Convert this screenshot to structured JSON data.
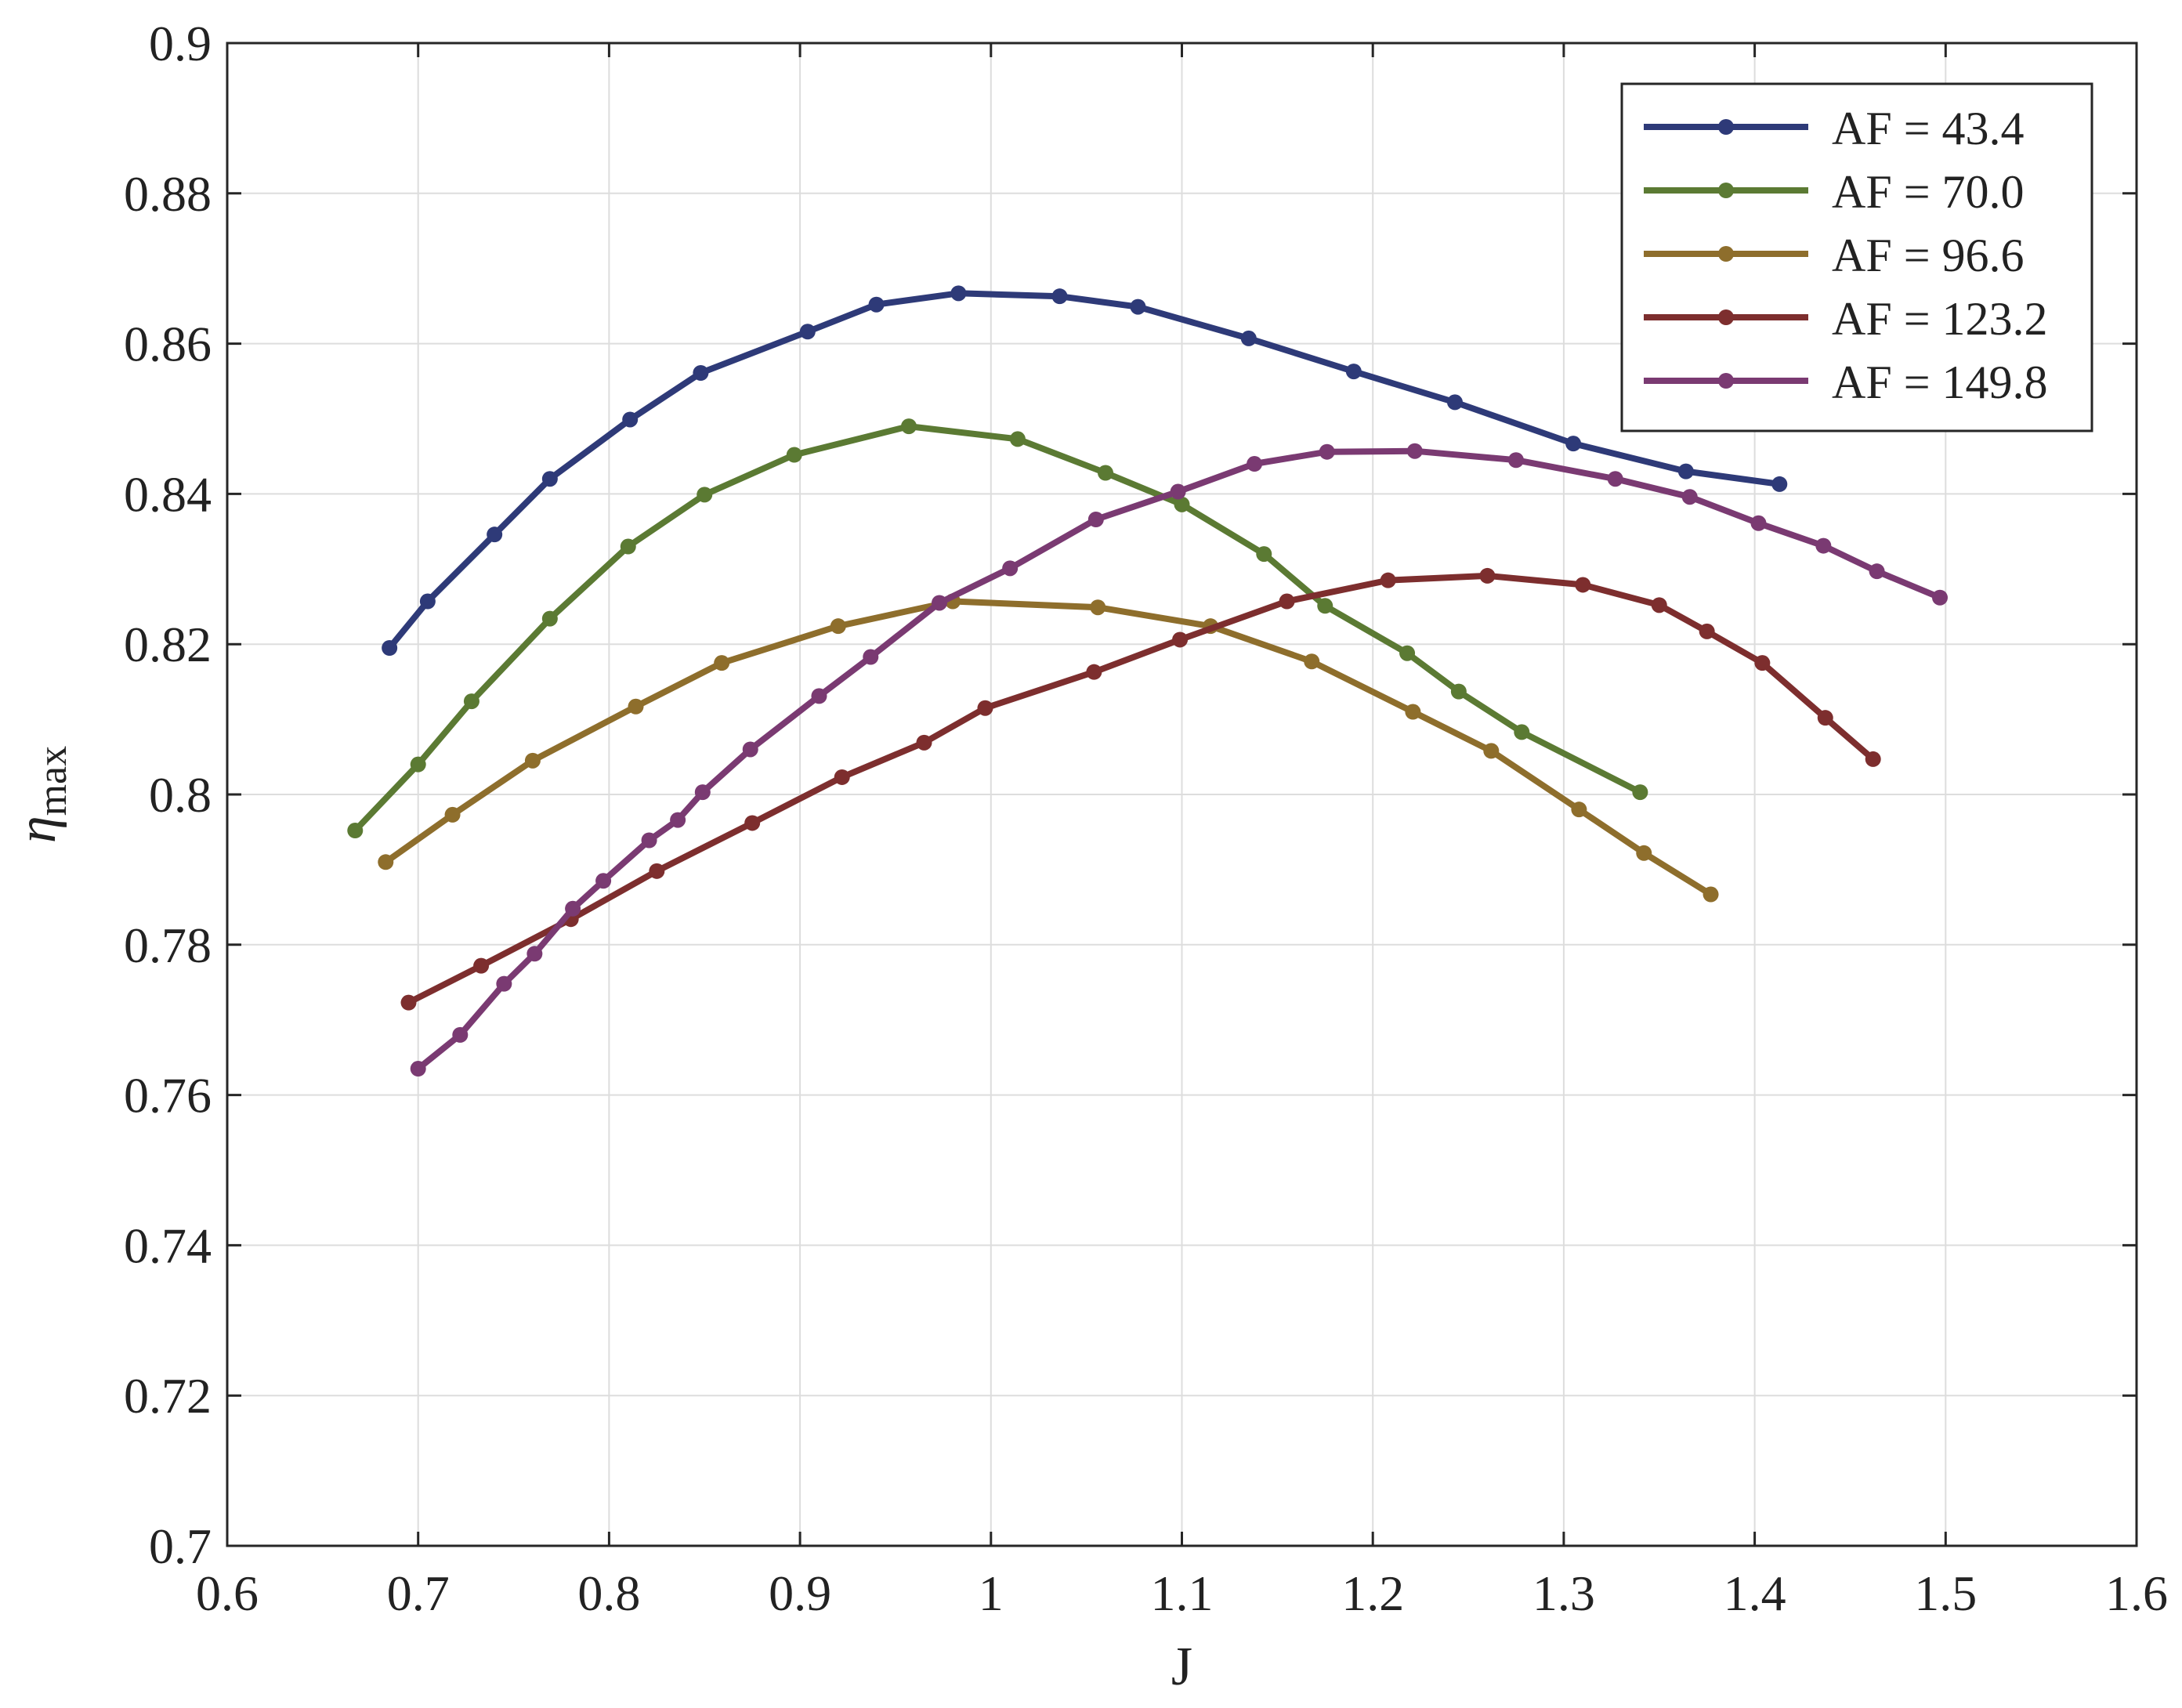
{
  "chart_data": {
    "type": "line",
    "xlabel": "J",
    "ylabel": {
      "main": "η",
      "sub": "max"
    },
    "xlim": [
      0.6,
      1.6
    ],
    "ylim": [
      0.7,
      0.9
    ],
    "xticks": [
      0.6,
      0.7,
      0.8,
      0.9,
      1,
      1.1,
      1.2,
      1.3,
      1.4,
      1.5,
      1.6
    ],
    "xtick_labels": [
      "0.6",
      "0.7",
      "0.8",
      "0.9",
      "1",
      "1.1",
      "1.2",
      "1.3",
      "1.4",
      "1.5",
      "1.6"
    ],
    "yticks": [
      0.7,
      0.72,
      0.74,
      0.76,
      0.78,
      0.8,
      0.82,
      0.84,
      0.86,
      0.88,
      0.9
    ],
    "ytick_labels": [
      "0.7",
      "0.72",
      "0.74",
      "0.76",
      "0.78",
      "0.8",
      "0.82",
      "0.84",
      "0.86",
      "0.88",
      "0.9"
    ],
    "grid": true,
    "legend_position": "top-right",
    "series": [
      {
        "name": "AF = 43.4",
        "color": "#2e3a78",
        "x": [
          0.685,
          0.705,
          0.74,
          0.769,
          0.811,
          0.848,
          0.904,
          0.94,
          0.983,
          1.036,
          1.077,
          1.135,
          1.19,
          1.243,
          1.305,
          1.364,
          1.413
        ],
        "y": [
          0.8195,
          0.8257,
          0.8346,
          0.842,
          0.8499,
          0.8561,
          0.8616,
          0.8652,
          0.8667,
          0.8663,
          0.8649,
          0.8607,
          0.8563,
          0.8522,
          0.8467,
          0.843,
          0.8413
        ]
      },
      {
        "name": "AF = 70.0",
        "color": "#5b7a33",
        "x": [
          0.667,
          0.7,
          0.728,
          0.769,
          0.81,
          0.85,
          0.897,
          0.957,
          1.014,
          1.06,
          1.1,
          1.143,
          1.175,
          1.218,
          1.245,
          1.278,
          1.34
        ],
        "y": [
          0.7952,
          0.804,
          0.8124,
          0.8234,
          0.833,
          0.8399,
          0.8452,
          0.849,
          0.8473,
          0.8428,
          0.8386,
          0.832,
          0.8251,
          0.8188,
          0.8137,
          0.8083,
          0.8003
        ]
      },
      {
        "name": "AF = 96.6",
        "color": "#8e6e2c",
        "x": [
          0.683,
          0.718,
          0.76,
          0.814,
          0.859,
          0.92,
          0.98,
          1.056,
          1.115,
          1.168,
          1.221,
          1.262,
          1.308,
          1.342,
          1.377
        ],
        "y": [
          0.791,
          0.7973,
          0.8045,
          0.8117,
          0.8175,
          0.8224,
          0.8257,
          0.8249,
          0.8224,
          0.8177,
          0.811,
          0.8058,
          0.798,
          0.7922,
          0.7867
        ]
      },
      {
        "name": "AF = 123.2",
        "color": "#7d2e2e",
        "x": [
          0.695,
          0.733,
          0.78,
          0.825,
          0.875,
          0.922,
          0.965,
          0.997,
          1.054,
          1.099,
          1.155,
          1.208,
          1.26,
          1.31,
          1.35,
          1.375,
          1.404,
          1.437,
          1.462
        ],
        "y": [
          0.7723,
          0.7772,
          0.7834,
          0.7898,
          0.7962,
          0.8023,
          0.8069,
          0.8115,
          0.8163,
          0.8206,
          0.8257,
          0.8285,
          0.8291,
          0.8279,
          0.8252,
          0.8217,
          0.8175,
          0.8102,
          0.8047
        ]
      },
      {
        "name": "AF = 149.8",
        "color": "#7a3a72",
        "x": [
          0.7,
          0.722,
          0.745,
          0.761,
          0.781,
          0.797,
          0.821,
          0.836,
          0.849,
          0.874,
          0.91,
          0.937,
          0.973,
          1.01,
          1.055,
          1.098,
          1.138,
          1.176,
          1.222,
          1.275,
          1.327,
          1.366,
          1.402,
          1.436,
          1.464,
          1.497
        ],
        "y": [
          0.7635,
          0.768,
          0.7748,
          0.7788,
          0.7848,
          0.7885,
          0.7939,
          0.7966,
          0.8003,
          0.806,
          0.8131,
          0.8183,
          0.8255,
          0.8301,
          0.8366,
          0.8403,
          0.844,
          0.8456,
          0.8457,
          0.8445,
          0.842,
          0.8396,
          0.8361,
          0.8331,
          0.8297,
          0.8262
        ]
      }
    ]
  }
}
